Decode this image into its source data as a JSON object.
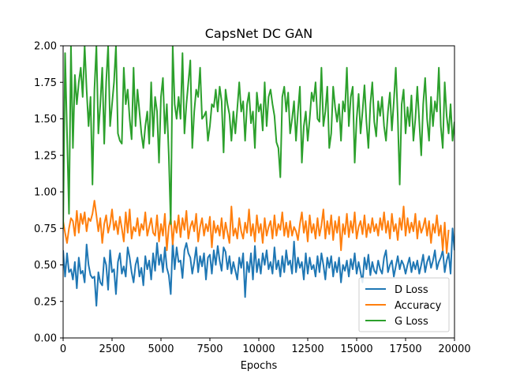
{
  "chart_data": {
    "type": "line",
    "title": "CapsNet DC GAN",
    "xlabel": "Epochs",
    "ylabel": "",
    "xlim": [
      0,
      20000
    ],
    "ylim": [
      0.0,
      2.0
    ],
    "x_ticks": [
      "0",
      "2500",
      "5000",
      "7500",
      "10000",
      "12500",
      "15000",
      "17500",
      "20000"
    ],
    "y_ticks": [
      "0.00",
      "0.25",
      "0.50",
      "0.75",
      "1.00",
      "1.25",
      "1.50",
      "1.75",
      "2.00"
    ],
    "grid": false,
    "legend_position": "lower-right",
    "x_start": 0,
    "x_step": 100,
    "series": [
      {
        "name": "D Loss",
        "color": "#1f77b4",
        "values": [
          0.6,
          0.42,
          0.58,
          0.45,
          0.47,
          0.4,
          0.52,
          0.34,
          0.55,
          0.44,
          0.46,
          0.38,
          0.64,
          0.5,
          0.43,
          0.41,
          0.42,
          0.22,
          0.45,
          0.38,
          0.36,
          0.55,
          0.5,
          0.33,
          0.6,
          0.45,
          0.47,
          0.3,
          0.52,
          0.58,
          0.44,
          0.49,
          0.42,
          0.62,
          0.55,
          0.45,
          0.38,
          0.5,
          0.55,
          0.42,
          0.48,
          0.36,
          0.56,
          0.47,
          0.53,
          0.4,
          0.58,
          0.46,
          0.65,
          0.5,
          0.57,
          0.45,
          0.62,
          0.48,
          0.43,
          0.3,
          0.66,
          0.47,
          0.62,
          0.52,
          0.53,
          0.41,
          0.6,
          0.65,
          0.58,
          0.55,
          0.44,
          0.52,
          0.62,
          0.45,
          0.56,
          0.49,
          0.58,
          0.4,
          0.55,
          0.57,
          0.44,
          0.6,
          0.5,
          0.63,
          0.53,
          0.46,
          0.62,
          0.59,
          0.47,
          0.56,
          0.44,
          0.52,
          0.46,
          0.4,
          0.55,
          0.48,
          0.58,
          0.28,
          0.52,
          0.45,
          0.58,
          0.4,
          0.63,
          0.45,
          0.54,
          0.44,
          0.58,
          0.5,
          0.6,
          0.47,
          0.52,
          0.44,
          0.62,
          0.47,
          0.53,
          0.42,
          0.56,
          0.45,
          0.6,
          0.5,
          0.53,
          0.44,
          0.66,
          0.45,
          0.55,
          0.48,
          0.52,
          0.4,
          0.58,
          0.44,
          0.55,
          0.47,
          0.5,
          0.42,
          0.56,
          0.45,
          0.58,
          0.5,
          0.4,
          0.55,
          0.48,
          0.56,
          0.42,
          0.52,
          0.45,
          0.55,
          0.38,
          0.5,
          0.46,
          0.53,
          0.42,
          0.54,
          0.47,
          0.58,
          0.44,
          0.52,
          0.45,
          0.38,
          0.55,
          0.47,
          0.57,
          0.43,
          0.52,
          0.46,
          0.44,
          0.53,
          0.47,
          0.44,
          0.55,
          0.6,
          0.45,
          0.5,
          0.53,
          0.42,
          0.49,
          0.56,
          0.47,
          0.53,
          0.5,
          0.44,
          0.5,
          0.55,
          0.45,
          0.52,
          0.47,
          0.53,
          0.44,
          0.5,
          0.57,
          0.45,
          0.52,
          0.56,
          0.48,
          0.53,
          0.6,
          0.47,
          0.52,
          0.55,
          0.6,
          0.45,
          0.53,
          0.58,
          0.44,
          0.75,
          0.6
        ]
      },
      {
        "name": "Accuracy",
        "color": "#ff7f0e",
        "values": [
          0.8,
          0.72,
          0.65,
          0.75,
          0.82,
          0.8,
          0.7,
          0.87,
          0.72,
          0.85,
          0.78,
          0.86,
          0.73,
          0.82,
          0.8,
          0.85,
          0.94,
          0.84,
          0.73,
          0.82,
          0.65,
          0.78,
          0.84,
          0.72,
          0.78,
          0.88,
          0.74,
          0.8,
          0.71,
          0.83,
          0.75,
          0.66,
          0.86,
          0.72,
          0.88,
          0.68,
          0.76,
          0.73,
          0.82,
          0.7,
          0.78,
          0.74,
          0.86,
          0.7,
          0.76,
          0.82,
          0.72,
          0.7,
          0.84,
          0.66,
          0.78,
          0.7,
          0.85,
          0.6,
          0.76,
          0.82,
          0.64,
          0.8,
          0.72,
          0.84,
          0.69,
          0.82,
          0.74,
          0.87,
          0.68,
          0.76,
          0.8,
          0.73,
          0.85,
          0.66,
          0.76,
          0.82,
          0.7,
          0.78,
          0.73,
          0.83,
          0.62,
          0.8,
          0.72,
          0.77,
          0.7,
          0.82,
          0.68,
          0.79,
          0.72,
          0.65,
          0.9,
          0.7,
          0.75,
          0.68,
          0.82,
          0.73,
          0.68,
          0.79,
          0.72,
          0.88,
          0.7,
          0.78,
          0.66,
          0.84,
          0.72,
          0.78,
          0.65,
          0.82,
          0.7,
          0.76,
          0.8,
          0.68,
          0.84,
          0.7,
          0.78,
          0.74,
          0.86,
          0.7,
          0.79,
          0.69,
          0.8,
          0.7,
          0.76,
          0.73,
          0.67,
          0.78,
          0.86,
          0.72,
          0.8,
          0.66,
          0.84,
          0.72,
          0.78,
          0.68,
          0.82,
          0.7,
          0.77,
          0.88,
          0.68,
          0.8,
          0.71,
          0.84,
          0.67,
          0.8,
          0.72,
          0.83,
          0.6,
          0.78,
          0.71,
          0.85,
          0.69,
          0.8,
          0.72,
          0.86,
          0.68,
          0.76,
          0.8,
          0.71,
          0.84,
          0.69,
          0.78,
          0.72,
          0.82,
          0.73,
          0.78,
          0.7,
          0.82,
          0.74,
          0.86,
          0.72,
          0.8,
          0.68,
          0.85,
          0.73,
          0.78,
          0.67,
          0.82,
          0.74,
          0.9,
          0.7,
          0.82,
          0.72,
          0.79,
          0.73,
          0.85,
          0.68,
          0.8,
          0.72,
          0.76,
          0.82,
          0.7,
          0.8,
          0.65,
          0.78,
          0.72,
          0.84,
          0.7,
          0.77,
          0.6,
          0.79,
          0.58,
          0.74
        ]
      },
      {
        "name": "G Loss",
        "color": "#2ca02c",
        "values": [
          0.75,
          1.95,
          1.4,
          0.85,
          2.0,
          1.3,
          1.8,
          1.6,
          1.75,
          1.85,
          1.65,
          2.0,
          1.7,
          1.45,
          1.65,
          1.05,
          1.7,
          2.0,
          1.4,
          1.6,
          1.85,
          1.33,
          1.75,
          2.0,
          1.45,
          1.6,
          1.75,
          2.0,
          1.4,
          1.35,
          1.33,
          1.85,
          1.6,
          1.7,
          1.5,
          1.36,
          1.85,
          1.45,
          1.7,
          1.55,
          1.4,
          1.3,
          1.45,
          1.55,
          1.33,
          1.75,
          1.38,
          1.65,
          1.55,
          1.2,
          1.65,
          1.78,
          1.4,
          1.6,
          1.25,
          0.78,
          2.0,
          1.6,
          1.5,
          1.65,
          1.5,
          1.95,
          1.4,
          1.6,
          1.75,
          1.9,
          1.3,
          1.55,
          1.7,
          1.65,
          1.85,
          1.5,
          1.52,
          1.55,
          1.35,
          1.45,
          1.6,
          1.58,
          1.7,
          1.55,
          1.72,
          1.62,
          1.27,
          1.7,
          1.6,
          1.53,
          1.35,
          1.55,
          1.4,
          1.57,
          1.75,
          1.55,
          1.62,
          1.35,
          1.6,
          1.68,
          1.47,
          1.55,
          1.3,
          1.68,
          1.55,
          1.6,
          1.42,
          1.75,
          1.45,
          1.65,
          1.7,
          1.6,
          1.52,
          1.34,
          1.3,
          1.1,
          1.65,
          1.72,
          1.55,
          1.68,
          1.4,
          1.5,
          1.62,
          1.35,
          1.55,
          1.72,
          1.2,
          1.45,
          1.55,
          1.35,
          1.5,
          1.68,
          1.62,
          1.75,
          1.5,
          1.48,
          1.85,
          1.45,
          1.55,
          1.72,
          1.3,
          1.4,
          1.72,
          1.58,
          1.48,
          1.6,
          1.35,
          1.62,
          1.55,
          1.85,
          1.45,
          1.65,
          1.72,
          1.2,
          1.5,
          1.67,
          1.4,
          1.55,
          1.73,
          1.48,
          1.3,
          1.6,
          1.75,
          1.48,
          1.38,
          1.62,
          1.52,
          1.65,
          1.45,
          1.35,
          1.55,
          1.68,
          1.42,
          1.62,
          1.85,
          1.52,
          1.05,
          1.6,
          1.7,
          1.4,
          1.58,
          1.45,
          1.66,
          1.35,
          1.5,
          1.72,
          1.48,
          1.25,
          1.6,
          1.78,
          1.5,
          1.35,
          1.65,
          1.45,
          1.62,
          1.55,
          1.85,
          1.45,
          1.3,
          1.75,
          1.52,
          1.4,
          1.6,
          1.35,
          1.48
        ]
      }
    ]
  }
}
